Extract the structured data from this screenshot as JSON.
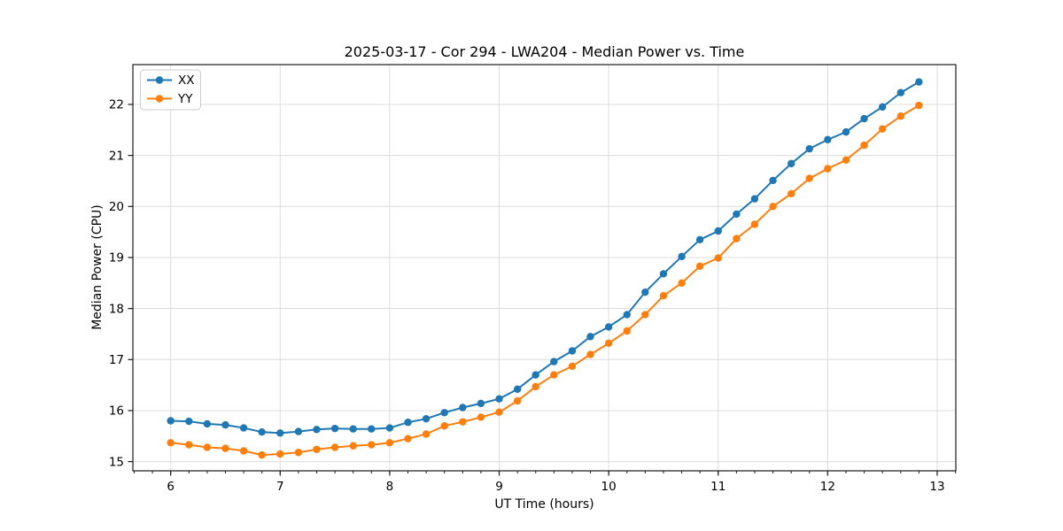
{
  "chart_data": {
    "type": "line",
    "title": "2025-03-17 - Cor 294 - LWA204 - Median Power vs. Time",
    "xlabel": "UT Time (hours)",
    "ylabel": "Median Power (CPU)",
    "xlim": [
      5.655,
      13.17
    ],
    "ylim": [
      14.82,
      22.78
    ],
    "grid": true,
    "legend_position": "upper-left",
    "x_major_ticks": [
      6,
      7,
      8,
      9,
      10,
      11,
      12,
      13
    ],
    "x_tick_labels": [
      "6",
      "7",
      "8",
      "9",
      "10",
      "11",
      "12",
      "13"
    ],
    "x_minor_tick_step": 0.16667,
    "y_major_ticks": [
      15,
      16,
      17,
      18,
      19,
      20,
      21,
      22
    ],
    "y_tick_labels": [
      "15",
      "16",
      "17",
      "18",
      "19",
      "20",
      "21",
      "22"
    ],
    "x": [
      6.0,
      6.167,
      6.333,
      6.5,
      6.667,
      6.833,
      7.0,
      7.167,
      7.333,
      7.5,
      7.667,
      7.833,
      8.0,
      8.167,
      8.333,
      8.5,
      8.667,
      8.833,
      9.0,
      9.167,
      9.333,
      9.5,
      9.667,
      9.833,
      10.0,
      10.167,
      10.333,
      10.5,
      10.667,
      10.833,
      11.0,
      11.167,
      11.333,
      11.5,
      11.667,
      11.833,
      12.0,
      12.167,
      12.333,
      12.5,
      12.667,
      12.833
    ],
    "series": [
      {
        "name": "XX",
        "color": "#1f77b4",
        "marker": "circle",
        "values": [
          15.8,
          15.79,
          15.74,
          15.72,
          15.66,
          15.58,
          15.56,
          15.59,
          15.63,
          15.65,
          15.64,
          15.64,
          15.66,
          15.77,
          15.84,
          15.96,
          16.06,
          16.14,
          16.23,
          16.42,
          16.7,
          16.96,
          17.17,
          17.45,
          17.64,
          17.88,
          18.32,
          18.68,
          19.02,
          19.35,
          19.52,
          19.85,
          20.15,
          20.51,
          20.84,
          21.13,
          21.31,
          21.46,
          21.72,
          21.95,
          22.23,
          22.44
        ]
      },
      {
        "name": "YY",
        "color": "#ff7f0e",
        "marker": "circle",
        "values": [
          15.37,
          15.33,
          15.28,
          15.26,
          15.21,
          15.13,
          15.15,
          15.18,
          15.24,
          15.28,
          15.31,
          15.33,
          15.37,
          15.45,
          15.54,
          15.7,
          15.78,
          15.87,
          15.97,
          16.19,
          16.47,
          16.7,
          16.87,
          17.1,
          17.32,
          17.56,
          17.88,
          18.25,
          18.5,
          18.83,
          18.99,
          19.37,
          19.65,
          20.0,
          20.25,
          20.55,
          20.74,
          20.91,
          21.2,
          21.52,
          21.77,
          21.98
        ]
      }
    ],
    "colors": {
      "grid": "#dcdcdc",
      "spine": "#1a1a1a",
      "tick": "#1a1a1a",
      "tick_label": "#000000",
      "legend_border": "#cccccc",
      "legend_bg": "#ffffff",
      "plot_bg": "#ffffff"
    }
  }
}
